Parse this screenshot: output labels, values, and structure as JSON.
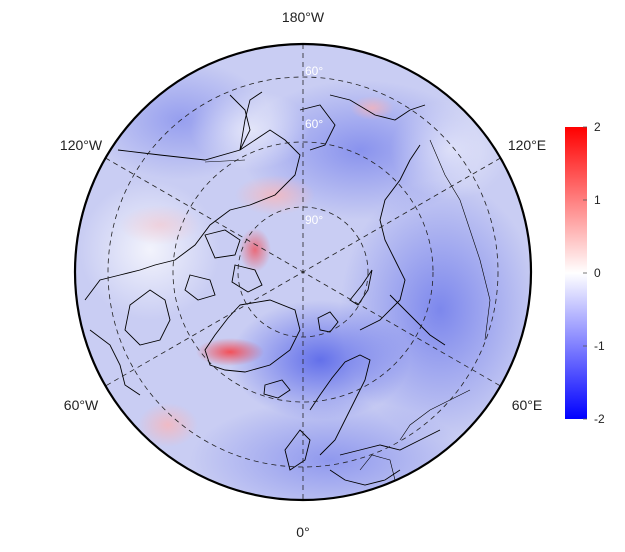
{
  "map": {
    "projection": "north-polar-stereographic",
    "meridian_labels": {
      "top": "180°W",
      "bottom": "0°",
      "upper_left": "120°W",
      "upper_right": "120°E",
      "lower_left": "60°W",
      "lower_right": "60°E"
    },
    "parallel_labels": [
      "60°",
      "60°",
      "90°"
    ],
    "graticule_style": "dashed",
    "colors": {
      "negative": "#0000ff",
      "neutral": "#ffffff",
      "positive": "#ff0000",
      "coastline": "#000000"
    }
  },
  "colorbar": {
    "min": -2,
    "max": 2,
    "tick_labels": [
      "2",
      "1",
      "0",
      "-1",
      "-2"
    ],
    "tick_values": [
      2,
      1,
      0,
      -1,
      -2
    ],
    "position": "right"
  }
}
